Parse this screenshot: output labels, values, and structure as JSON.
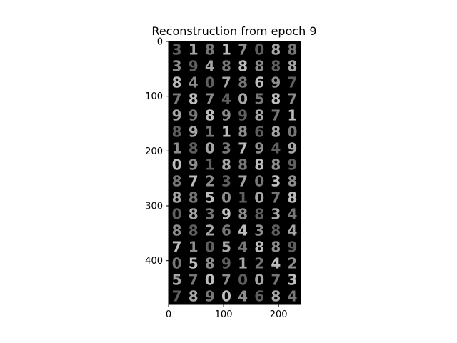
{
  "chart_data": {
    "type": "image",
    "title": "Reconstruction from epoch 9",
    "xlim": [
      0,
      240
    ],
    "ylim": [
      480,
      0
    ],
    "xticks": [
      0,
      100,
      200
    ],
    "yticks": [
      0,
      100,
      200,
      300,
      400
    ],
    "xtick_labels": [
      "0",
      "100",
      "200"
    ],
    "ytick_labels": [
      "0",
      "100",
      "200",
      "300",
      "400"
    ],
    "grid": false,
    "legend": "none",
    "colors": {
      "background": "#000000",
      "digit": "#bdbdbd",
      "axis": "#000000"
    },
    "rows": [
      [
        "3",
        "1",
        "8",
        "1",
        "7",
        "0",
        "8",
        "8"
      ],
      [
        "3",
        "9",
        "4",
        "8",
        "8",
        "8",
        "8",
        "8"
      ],
      [
        "8",
        "4",
        "0",
        "7",
        "8",
        "6",
        "9",
        "7"
      ],
      [
        "7",
        "8",
        "7",
        "4",
        "0",
        "5",
        "8",
        "7"
      ],
      [
        "9",
        "9",
        "8",
        "9",
        "9",
        "8",
        "7",
        "1"
      ],
      [
        "8",
        "9",
        "1",
        "1",
        "8",
        "6",
        "8",
        "0"
      ],
      [
        "1",
        "8",
        "0",
        "3",
        "7",
        "9",
        "4",
        "9"
      ],
      [
        "0",
        "9",
        "1",
        "8",
        "8",
        "8",
        "8",
        "9"
      ],
      [
        "8",
        "7",
        "2",
        "3",
        "7",
        "0",
        "3",
        "8"
      ],
      [
        "8",
        "8",
        "5",
        "0",
        "1",
        "0",
        "7",
        "8"
      ],
      [
        "0",
        "8",
        "3",
        "9",
        "8",
        "8",
        "3",
        "4"
      ],
      [
        "8",
        "8",
        "2",
        "6",
        "4",
        "3",
        "8",
        "4"
      ],
      [
        "7",
        "1",
        "0",
        "5",
        "4",
        "8",
        "8",
        "9"
      ],
      [
        "0",
        "5",
        "8",
        "9",
        "1",
        "2",
        "4",
        "2"
      ],
      [
        "5",
        "7",
        "0",
        "7",
        "0",
        "0",
        "7",
        "3"
      ],
      [
        "7",
        "8",
        "9",
        "0",
        "4",
        "6",
        "8",
        "4"
      ]
    ]
  }
}
